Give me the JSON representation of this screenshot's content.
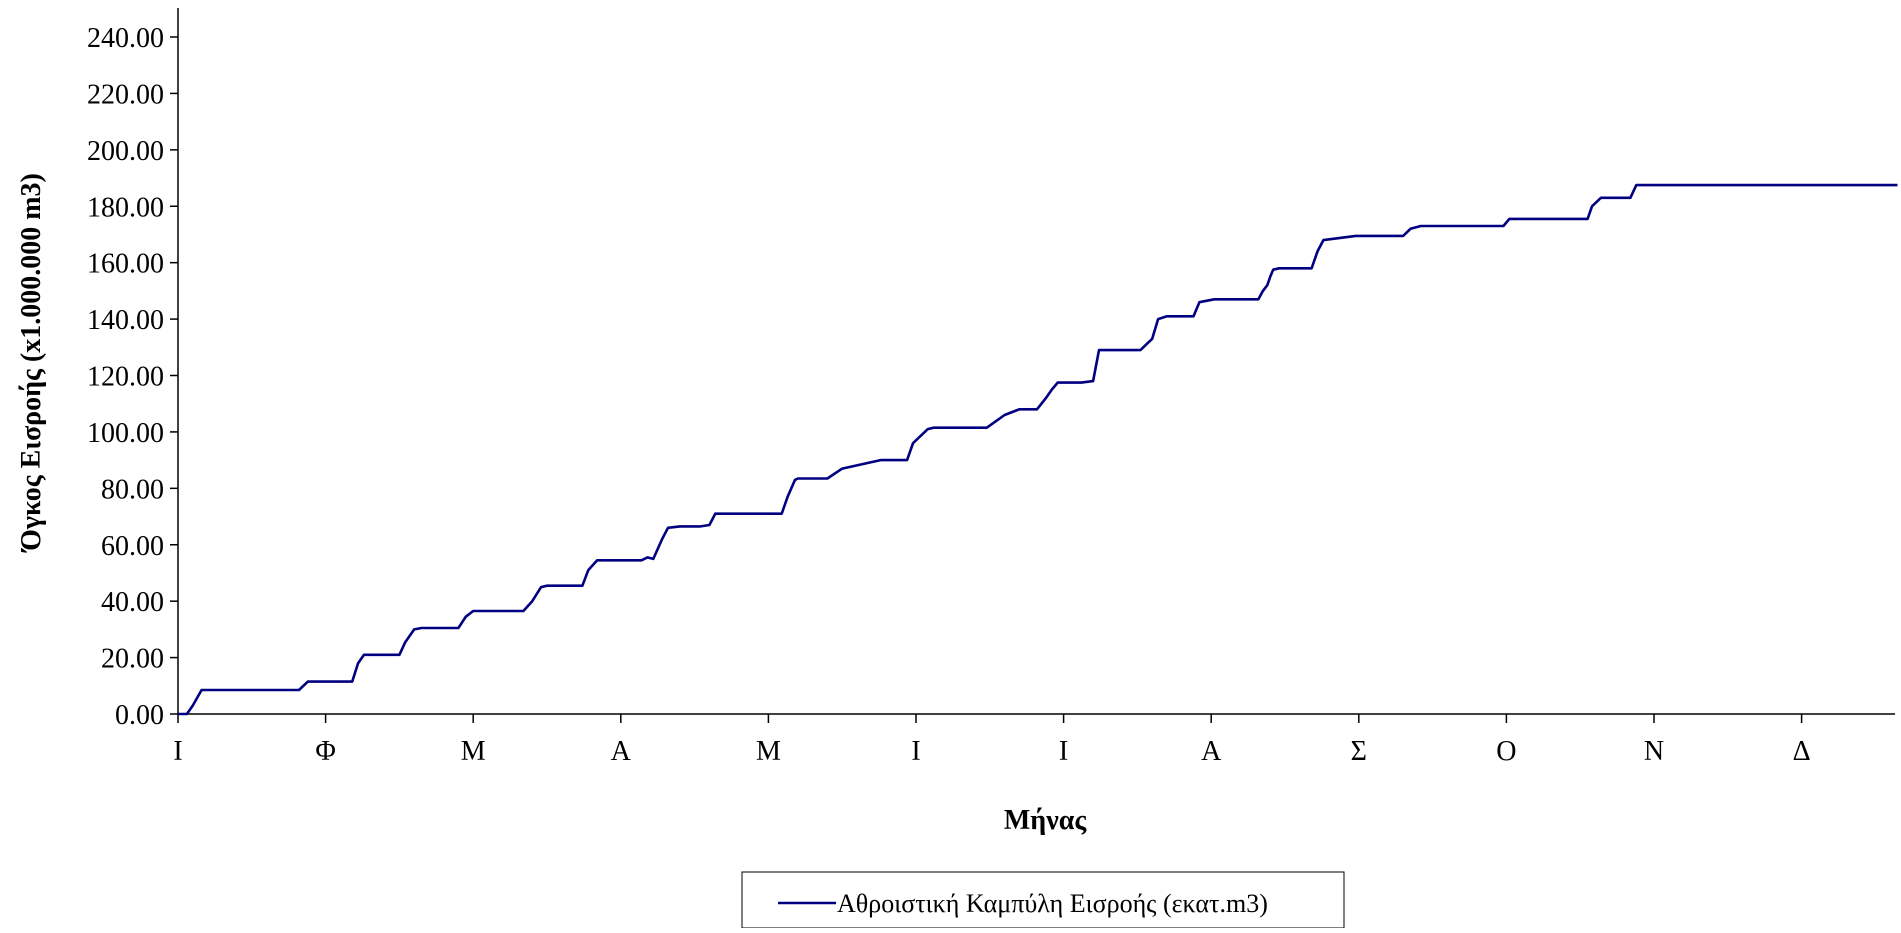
{
  "chart_data": {
    "type": "line",
    "xlabel": "Μήνας",
    "ylabel": "Όγκος Εισροής (x1.000.000 m3)",
    "ylim": [
      0,
      240
    ],
    "yticks": [
      "0.00",
      "20.00",
      "40.00",
      "60.00",
      "80.00",
      "100.00",
      "120.00",
      "140.00",
      "160.00",
      "180.00",
      "200.00",
      "220.00",
      "240.00"
    ],
    "categories": [
      "Ι",
      "Φ",
      "Μ",
      "Α",
      "Μ",
      "Ι",
      "Ι",
      "Α",
      "Σ",
      "Ο",
      "Ν",
      "Δ"
    ],
    "xlim": [
      0,
      11.65
    ],
    "grid": false,
    "legend": "bottom-center",
    "series": [
      {
        "name": "Αθροιστική Καμπύλη Εισροής (εκατ.m3)",
        "color": "#000080",
        "x": [
          0.0,
          0.06,
          0.1,
          0.16,
          0.2,
          0.82,
          0.88,
          0.9,
          1.18,
          1.22,
          1.26,
          1.32,
          1.5,
          1.54,
          1.6,
          1.65,
          1.9,
          1.95,
          2.0,
          2.34,
          2.4,
          2.46,
          2.5,
          2.55,
          2.58,
          2.6,
          2.74,
          2.78,
          2.84,
          2.88,
          3.14,
          3.18,
          3.22,
          3.28,
          3.32,
          3.4,
          3.44,
          3.48,
          3.5,
          3.54,
          3.6,
          3.64,
          3.9,
          3.94,
          3.98,
          4.02,
          4.04,
          4.07,
          4.09,
          4.13,
          4.18,
          4.2,
          4.26,
          4.32,
          4.4,
          4.5,
          4.76,
          4.8,
          4.84,
          4.86,
          4.94,
          4.98,
          5.08,
          5.12,
          5.2,
          5.3,
          5.34,
          5.36,
          5.38,
          5.42,
          5.44,
          5.46,
          5.48,
          5.6,
          5.7,
          5.72,
          5.75,
          5.76,
          5.8,
          5.82,
          5.88,
          5.92,
          5.96,
          6.12,
          6.2,
          6.24,
          6.27,
          6.34,
          6.48,
          6.52,
          6.6,
          6.64,
          6.7,
          6.74,
          6.84,
          6.86,
          6.88,
          6.92,
          7.02,
          7.06,
          7.16,
          7.2,
          7.28,
          7.3,
          7.32,
          7.35,
          7.38,
          7.4,
          7.42,
          7.46,
          7.5,
          7.54,
          7.58,
          7.62,
          7.65,
          7.68,
          7.72,
          7.76,
          7.98,
          8.02,
          8.06,
          8.08,
          8.2,
          8.25,
          8.3,
          8.35,
          8.42,
          8.5,
          8.55,
          8.62,
          8.66,
          8.68,
          8.72,
          8.76,
          8.98,
          9.02,
          9.1,
          9.12,
          9.4,
          9.45,
          9.5,
          9.55,
          9.58,
          9.64,
          9.68,
          9.72,
          9.76,
          9.8,
          9.84,
          9.88,
          10.08,
          10.12,
          10.2,
          10.24,
          10.26,
          10.28,
          10.3,
          10.34,
          10.4,
          10.44,
          10.48,
          10.62,
          10.68,
          10.72,
          10.78,
          10.84,
          10.9,
          10.94,
          11.02,
          11.04,
          11.06,
          11.1,
          11.16,
          11.22,
          11.26,
          11.32,
          11.65
        ],
        "y": [
          0.0,
          0.0,
          3.0,
          8.5,
          8.5,
          8.5,
          11.5,
          11.5,
          11.5,
          18.0,
          21.0,
          21.0,
          21.0,
          25.5,
          30.0,
          30.5,
          30.5,
          34.5,
          36.5,
          36.5,
          40.0,
          45.0,
          45.5,
          45.5,
          45.5,
          45.5,
          45.5,
          51.0,
          54.5,
          54.5,
          54.5,
          55.5,
          55.0,
          62.0,
          66.0,
          66.5,
          66.5,
          66.5,
          66.5,
          66.5,
          67.0,
          71.0,
          71.0,
          71.0,
          71.0,
          71.0,
          71.0,
          71.0,
          71.0,
          77.0,
          83.0,
          83.5,
          83.5,
          83.5,
          83.5,
          87.0,
          90.0,
          90.0,
          90.0,
          90.0,
          90.0,
          96.0,
          101.0,
          101.5,
          101.5,
          101.5,
          101.5,
          101.5,
          101.5,
          101.5,
          101.5,
          101.5,
          101.5,
          106.0,
          108.0,
          108.0,
          108.0,
          108.0,
          108.0,
          108.0,
          112.0,
          115.0,
          117.5,
          117.5,
          118.0,
          129.0,
          129.0,
          129.0,
          129.0,
          129.0,
          133.0,
          140.0,
          141.0,
          141.0,
          141.0,
          141.0,
          141.0,
          146.0,
          147.0,
          147.0,
          147.0,
          147.0,
          147.0,
          147.0,
          147.0,
          150.0,
          152.0,
          155.0,
          157.5,
          158.0,
          158.0,
          158.0,
          158.0,
          158.0,
          158.0,
          158.0,
          164.0,
          168.0,
          169.5,
          169.5,
          169.5,
          169.5,
          169.5,
          169.5,
          169.5,
          172.0,
          173.0,
          173.0,
          173.0,
          173.0,
          173.0,
          173.0,
          173.0,
          173.0,
          173.0,
          175.5,
          175.5,
          175.5,
          175.5,
          175.5,
          175.5,
          175.5,
          180.0,
          183.0,
          183.0,
          183.0,
          183.0,
          183.0,
          183.0,
          187.5,
          187.5,
          187.5,
          187.5,
          187.5,
          187.5,
          187.5,
          187.5,
          187.5,
          187.5,
          187.5,
          187.5,
          187.5,
          187.5,
          187.5,
          187.5,
          187.5,
          187.5,
          187.5,
          187.5,
          187.5,
          187.5,
          187.5,
          187.5,
          187.5,
          187.5,
          187.5,
          187.5
        ]
      }
    ]
  }
}
